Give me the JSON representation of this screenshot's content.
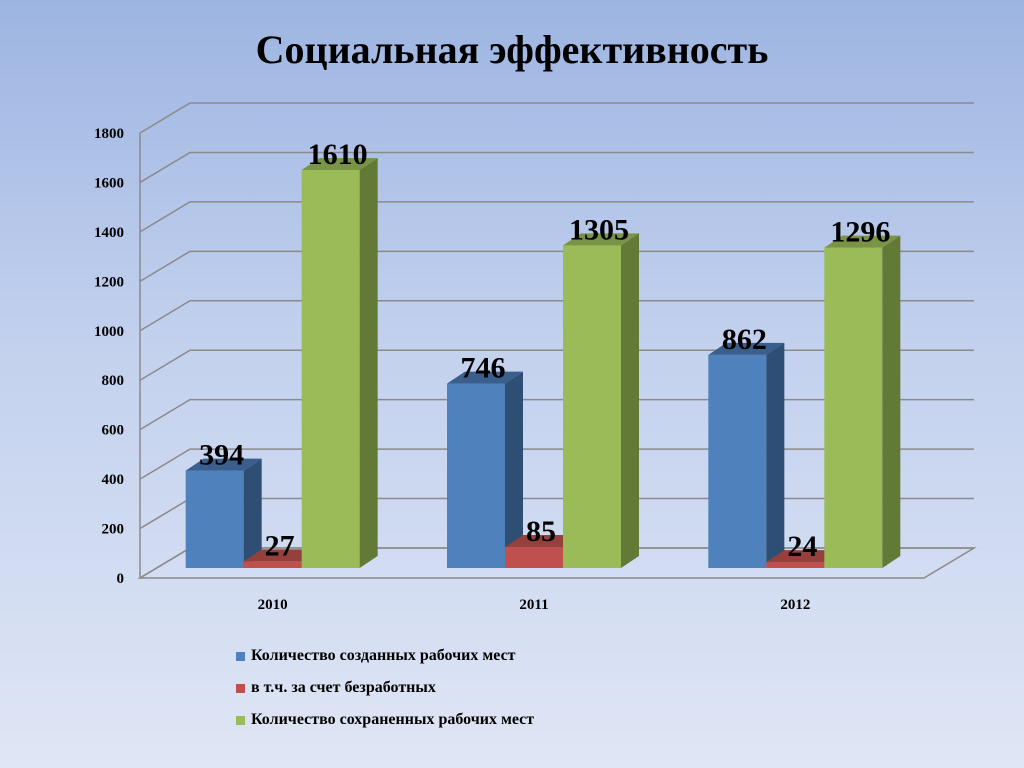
{
  "colors": {
    "front": [
      "#4f81bd",
      "#c0504d",
      "#9bbb59"
    ],
    "side": [
      "#2f4e74",
      "#7c3130",
      "#637a36"
    ],
    "top": [
      "#3a5f8c",
      "#94403d",
      "#7a9446"
    ]
  },
  "chart_data": {
    "type": "bar",
    "title": "Социальная эффективность",
    "categories": [
      "2010",
      "2011",
      "2012"
    ],
    "series": [
      {
        "name": "Количество созданных рабочих мест",
        "values": [
          394,
          746,
          862
        ]
      },
      {
        "name": "в т.ч. за счет безработных",
        "values": [
          27,
          85,
          24
        ]
      },
      {
        "name": "Количество сохраненных рабочих мест",
        "values": [
          1610,
          1305,
          1296
        ]
      }
    ],
    "ylim": [
      0,
      1800
    ],
    "yticks": [
      "0",
      "200",
      "400",
      "600",
      "800",
      "1000",
      "1200",
      "1400",
      "1600",
      "1800"
    ],
    "grid": true,
    "legend_position": "bottom"
  }
}
